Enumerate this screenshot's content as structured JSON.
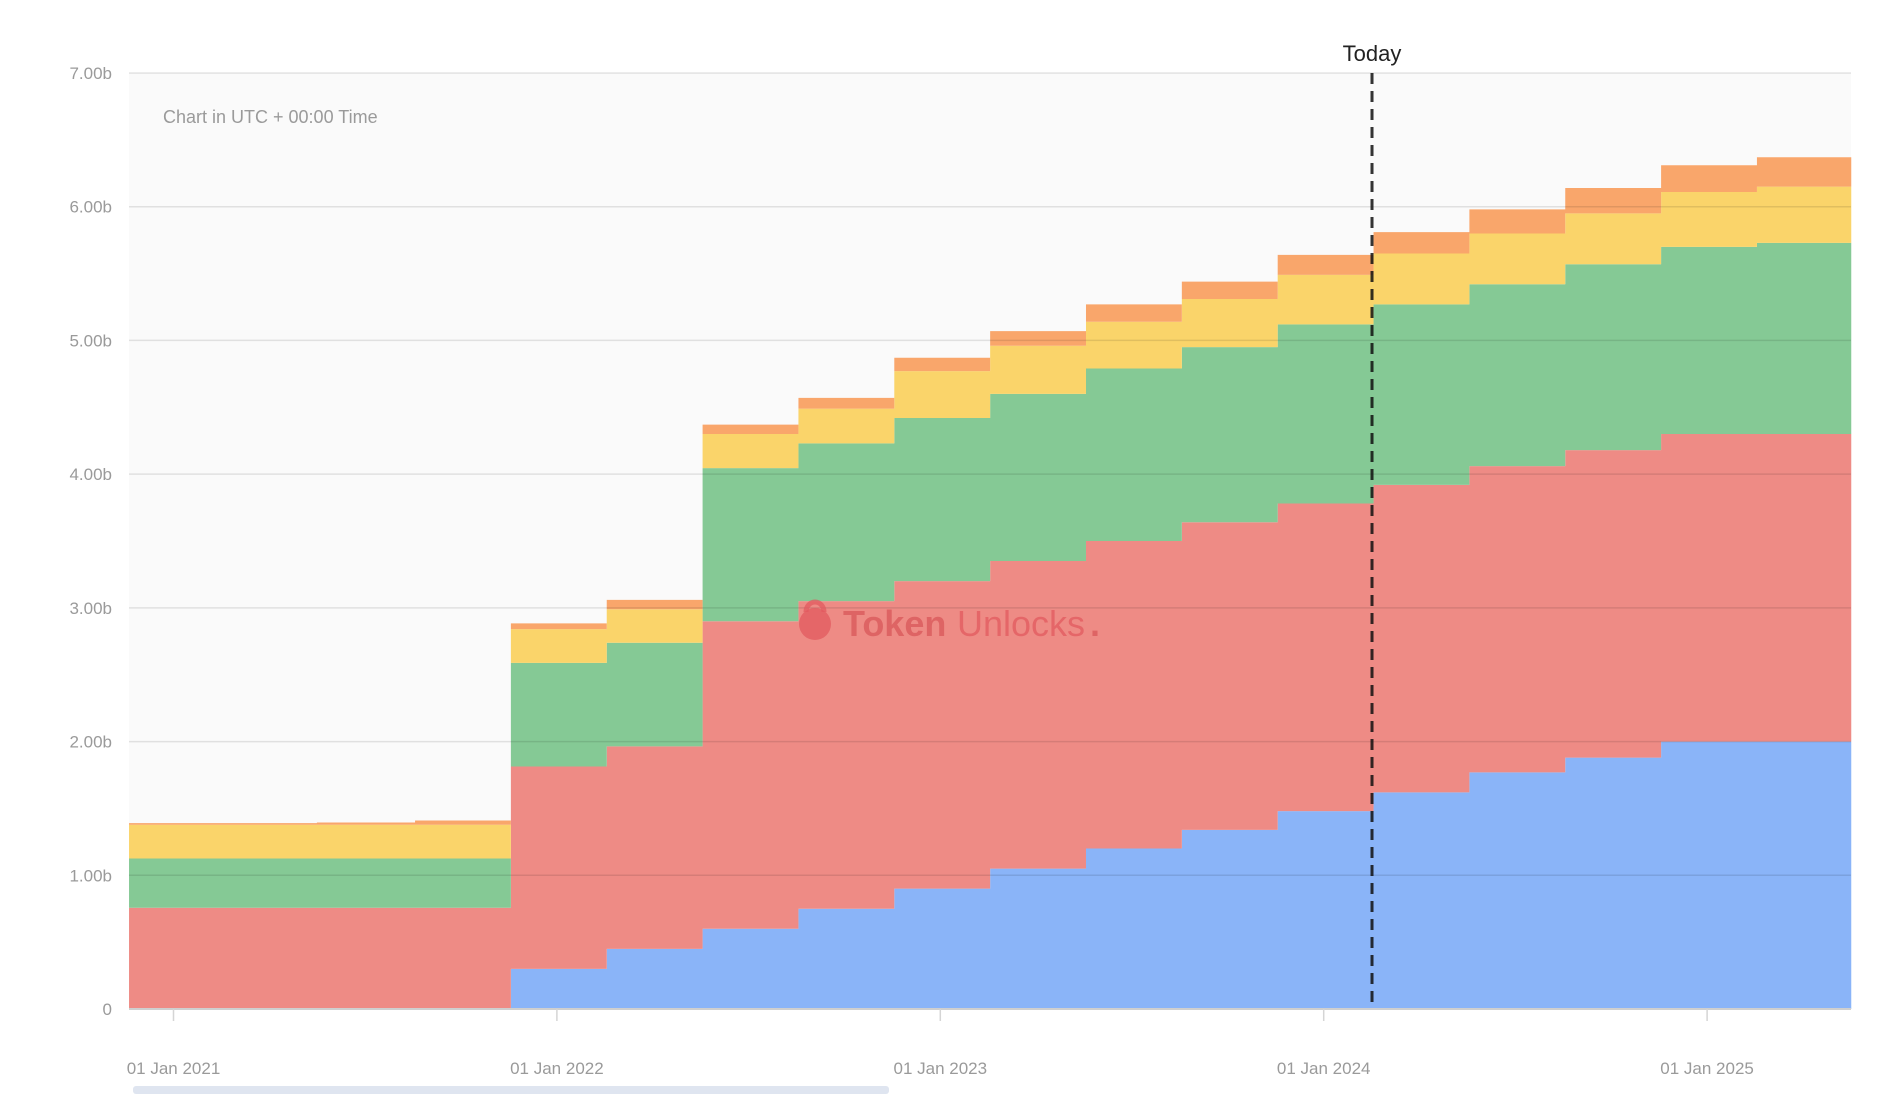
{
  "chart_data": {
    "type": "area",
    "stacked": true,
    "step": true,
    "note": "Chart in UTC + 00:00 Time",
    "watermark": "TokenUnlocks.",
    "watermark_parts": [
      "Token",
      "Unlocks",
      "."
    ],
    "today_label": "Today",
    "today_x": 2024.126,
    "ylim": [
      0,
      7
    ],
    "y_ticks": [
      {
        "v": 0,
        "label": "0"
      },
      {
        "v": 1,
        "label": "1.00b"
      },
      {
        "v": 2,
        "label": "2.00b"
      },
      {
        "v": 3,
        "label": "3.00b"
      },
      {
        "v": 4,
        "label": "4.00b"
      },
      {
        "v": 5,
        "label": "5.00b"
      },
      {
        "v": 6,
        "label": "6.00b"
      },
      {
        "v": 7,
        "label": "7.00b"
      }
    ],
    "x_ticks": [
      {
        "v": 2021,
        "label": "01 Jan 2021"
      },
      {
        "v": 2022,
        "label": "01 Jan 2022"
      },
      {
        "v": 2023,
        "label": "01 Jan 2023"
      },
      {
        "v": 2024,
        "label": "01 Jan 2024"
      },
      {
        "v": 2025,
        "label": "01 Jan 2025"
      }
    ],
    "xlim": [
      2020.884,
      2025.376
    ],
    "x_starts": [
      2020.884,
      2021.374,
      2021.63,
      2021.88,
      2022.13,
      2022.38,
      2022.63,
      2022.88,
      2023.13,
      2023.38,
      2023.63,
      2023.88,
      2024.13,
      2024.38,
      2024.63,
      2024.88,
      2025.13
    ],
    "x_end": 2025.376,
    "series": [
      {
        "name": "blue",
        "color": "#8ab4f8",
        "values": [
          0,
          0,
          0,
          0.3,
          0.45,
          0.6,
          0.75,
          0.9,
          1.05,
          1.2,
          1.34,
          1.48,
          1.62,
          1.77,
          1.88,
          2.0,
          2.0
        ]
      },
      {
        "name": "red",
        "color": "#ee8b85",
        "values": [
          0.757,
          0.757,
          0.757,
          1.514,
          1.514,
          2.3,
          2.3,
          2.3,
          2.3,
          2.3,
          2.3,
          2.3,
          2.3,
          2.29,
          2.3,
          2.3,
          2.3
        ]
      },
      {
        "name": "green",
        "color": "#85c995",
        "values": [
          0.369,
          0.369,
          0.369,
          0.775,
          0.775,
          1.145,
          1.18,
          1.22,
          1.25,
          1.29,
          1.31,
          1.34,
          1.35,
          1.36,
          1.39,
          1.4,
          1.43
        ]
      },
      {
        "name": "yellow",
        "color": "#fad46a",
        "values": [
          0.252,
          0.252,
          0.252,
          0.252,
          0.251,
          0.255,
          0.26,
          0.35,
          0.36,
          0.35,
          0.36,
          0.37,
          0.38,
          0.38,
          0.38,
          0.41,
          0.42
        ]
      },
      {
        "name": "orange",
        "color": "#f9a66b",
        "values": [
          0.012,
          0.017,
          0.032,
          0.043,
          0.07,
          0.07,
          0.08,
          0.1,
          0.11,
          0.13,
          0.13,
          0.15,
          0.16,
          0.18,
          0.19,
          0.2,
          0.22
        ]
      }
    ]
  }
}
